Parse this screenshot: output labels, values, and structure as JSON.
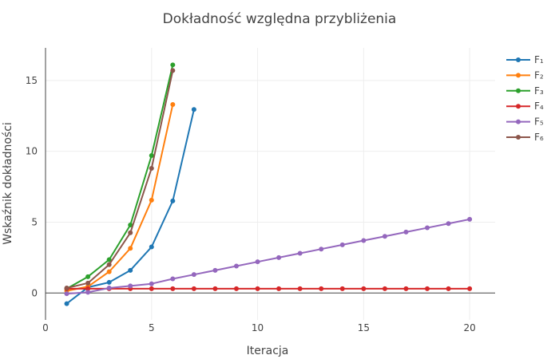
{
  "chart_data": {
    "type": "line",
    "title": "Dokładność względna przybliżenia",
    "xlabel": "Iteracja",
    "ylabel": "Wskaźnik dokładności",
    "xlim": [
      0,
      21.2
    ],
    "ylim": [
      -1.9,
      17.3
    ],
    "xticks": [
      0,
      5,
      10,
      15,
      20
    ],
    "yticks": [
      0,
      5,
      10,
      15
    ],
    "grid": true,
    "legend_position": "top-right",
    "series": [
      {
        "name": "F₁",
        "color": "#1f77b4",
        "x": [
          1,
          2,
          3,
          4,
          5,
          6,
          7
        ],
        "y": [
          -0.75,
          0.4,
          0.75,
          1.6,
          3.25,
          6.5,
          12.95
        ]
      },
      {
        "name": "F₂",
        "color": "#ff7f0e",
        "x": [
          1,
          2,
          3,
          4,
          5,
          6
        ],
        "y": [
          0.15,
          0.45,
          1.5,
          3.15,
          6.55,
          13.3
        ]
      },
      {
        "name": "F₃",
        "color": "#2ca02c",
        "x": [
          1,
          2,
          3,
          4,
          5,
          6
        ],
        "y": [
          0.3,
          1.15,
          2.35,
          4.8,
          9.7,
          16.1
        ]
      },
      {
        "name": "F₄",
        "color": "#d62728",
        "x": [
          1,
          2,
          3,
          4,
          5,
          6,
          7,
          8,
          9,
          10,
          11,
          12,
          13,
          14,
          15,
          16,
          17,
          18,
          19,
          20
        ],
        "y": [
          0.3,
          0.3,
          0.3,
          0.3,
          0.3,
          0.3,
          0.3,
          0.3,
          0.3,
          0.3,
          0.3,
          0.3,
          0.3,
          0.3,
          0.3,
          0.3,
          0.3,
          0.3,
          0.3,
          0.3
        ]
      },
      {
        "name": "F₅",
        "color": "#9467bd",
        "x": [
          1,
          2,
          3,
          4,
          5,
          6,
          7,
          8,
          9,
          10,
          11,
          12,
          13,
          14,
          15,
          16,
          17,
          18,
          19,
          20
        ],
        "y": [
          -0.05,
          0.05,
          0.35,
          0.5,
          0.65,
          1.0,
          1.3,
          1.6,
          1.9,
          2.2,
          2.5,
          2.8,
          3.1,
          3.4,
          3.7,
          4.0,
          4.3,
          4.6,
          4.9,
          5.2
        ]
      },
      {
        "name": "F₆",
        "color": "#8c564b",
        "x": [
          1,
          2,
          3,
          4,
          5,
          6
        ],
        "y": [
          0.35,
          0.7,
          2.0,
          4.25,
          8.8,
          15.7
        ]
      }
    ]
  }
}
